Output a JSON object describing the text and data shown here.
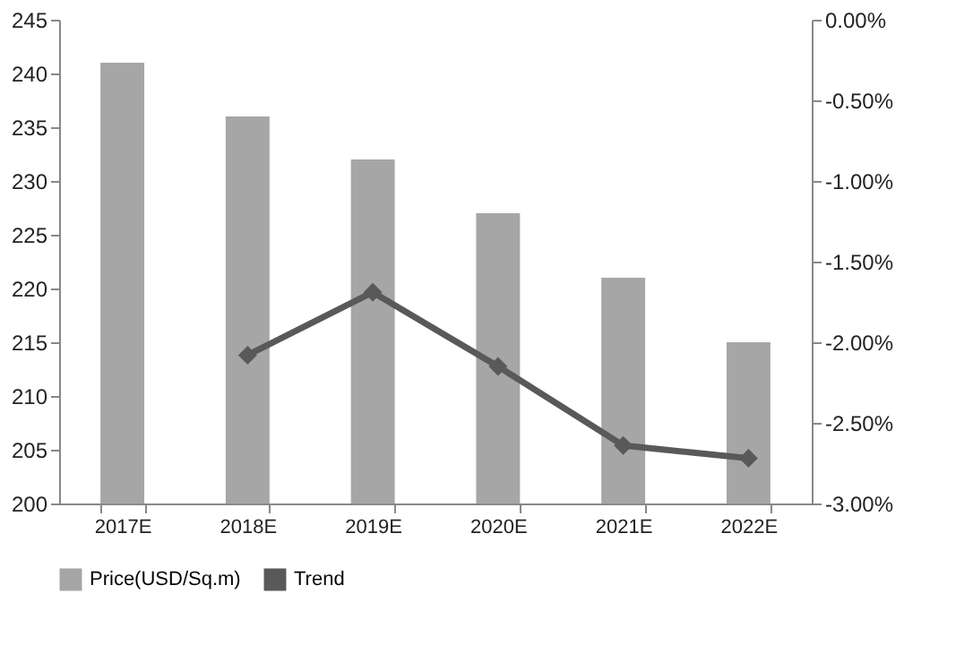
{
  "chart_data": {
    "type": "bar",
    "categories": [
      "2017E",
      "2018E",
      "2019E",
      "2020E",
      "2021E",
      "2022E"
    ],
    "series": [
      {
        "name": "Price(USD/Sq.m)",
        "color": "#a6a6a6",
        "values": [
          241,
          236,
          232,
          227,
          221,
          215
        ]
      },
      {
        "name": "Trend",
        "type": "line",
        "axis": "y2",
        "color": "#595959",
        "marker": "diamond",
        "values": [
          null,
          -2.08,
          -1.69,
          -2.15,
          -2.64,
          -2.72
        ]
      }
    ],
    "ylim": [
      200,
      245
    ],
    "yticks": [
      200,
      205,
      210,
      215,
      220,
      225,
      230,
      235,
      240,
      245
    ],
    "y2lim": [
      -3,
      0
    ],
    "y2ticks": [
      {
        "value": -3,
        "label": "-3.00%"
      },
      {
        "value": -2.5,
        "label": "-2.50%"
      },
      {
        "value": -2,
        "label": "-2.00%"
      },
      {
        "value": -1.5,
        "label": "-1.50%"
      },
      {
        "value": -1,
        "label": "-1.00%"
      },
      {
        "value": -0.5,
        "label": "-0.50%"
      },
      {
        "value": 0,
        "label": "0.00%"
      }
    ],
    "grid": false,
    "legend": "bottom"
  }
}
